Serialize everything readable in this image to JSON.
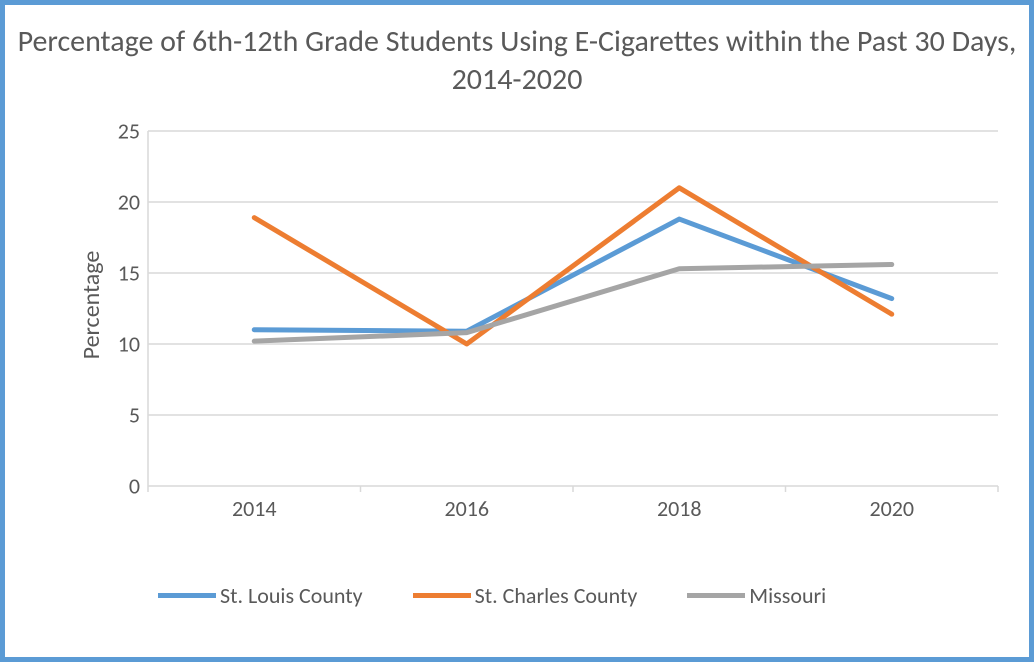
{
  "chart": {
    "type": "line",
    "title": "Percentage of 6th-12th Grade Students Using E-Cigarettes within the Past 30 Days, 2014-2020",
    "title_fontsize": 30,
    "ylabel": "Percentage",
    "ylabel_fontsize": 24,
    "background_color": "#ffffff",
    "border_color": "#5b9bd5",
    "border_width": 5,
    "grid_color": "#d9d9d9",
    "axis_color": "#d9d9d9",
    "text_color": "#595959",
    "tick_fontsize": 22,
    "legend_fontsize": 22,
    "line_width": 5,
    "ylim": [
      0,
      25
    ],
    "yticks": [
      0,
      5,
      10,
      15,
      20,
      25
    ],
    "xcats": [
      "2014",
      "2016",
      "2018",
      "2020"
    ],
    "series": [
      {
        "name": "St. Louis County",
        "color": "#5b9bd5",
        "values": [
          11.0,
          10.9,
          18.8,
          13.2
        ]
      },
      {
        "name": "St. Charles County",
        "color": "#ed7d31",
        "values": [
          18.9,
          10.0,
          21.0,
          12.1
        ]
      },
      {
        "name": "Missouri",
        "color": "#a5a5a5",
        "values": [
          10.2,
          10.8,
          15.3,
          15.6
        ]
      }
    ]
  }
}
